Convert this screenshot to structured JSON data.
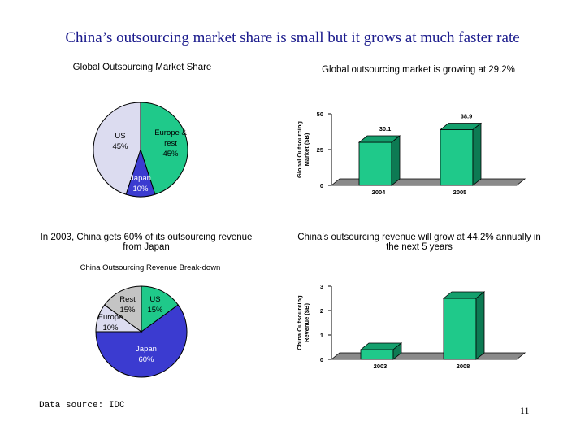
{
  "slide": {
    "title": "China’s outsourcing market share is small but it grows at much faster rate",
    "source": "Data source: IDC",
    "page_number": "11"
  },
  "colors": {
    "green": "#1fc98a",
    "blue": "#3b3bd0",
    "lavender": "#dcdcf0",
    "gray": "#c4c4c4",
    "title": "#1a1a8c"
  },
  "chart_data": [
    {
      "type": "pie",
      "title": "Global Outsourcing Market Share",
      "slices": [
        {
          "label": "Europe & rest",
          "value": 45,
          "display": "45%",
          "color": "#1fc98a"
        },
        {
          "label": "Japan",
          "value": 10,
          "display": "10%",
          "color": "#3b3bd0"
        },
        {
          "label": "US",
          "value": 45,
          "display": "45%",
          "color": "#dcdcf0"
        }
      ]
    },
    {
      "type": "bar",
      "title": "Global outsourcing market is growing at 29.2%",
      "ylabel_lines": [
        "Global Outsourcing",
        "Market ($B)"
      ],
      "categories": [
        "2004",
        "2005"
      ],
      "values": [
        30.1,
        38.9
      ],
      "value_labels": [
        "30.1",
        "38.9"
      ],
      "ylim": [
        0,
        50
      ],
      "yticks": [
        0,
        25,
        50
      ]
    },
    {
      "type": "pie",
      "title": "In 2003, China gets 60% of its outsourcing revenue from Japan",
      "subtitle": "China Outsourcing Revenue Break-down",
      "slices": [
        {
          "label": "US",
          "value": 15,
          "display": "15%",
          "color": "#1fc98a"
        },
        {
          "label": "Japan",
          "value": 60,
          "display": "60%",
          "color": "#3b3bd0"
        },
        {
          "label": "Europe",
          "value": 10,
          "display": "10%",
          "color": "#dcdcf0"
        },
        {
          "label": "Rest",
          "value": 15,
          "display": "15%",
          "color": "#c4c4c4"
        }
      ]
    },
    {
      "type": "bar",
      "title": "China’s outsourcing revenue will grow at 44.2% annually in the next 5 years",
      "ylabel_lines": [
        "China Outsourcing",
        "Revenue ($B)"
      ],
      "categories": [
        "2003",
        "2008"
      ],
      "values": [
        0.4,
        2.5
      ],
      "ylim": [
        0,
        3
      ],
      "yticks": [
        0,
        1,
        2,
        3
      ]
    }
  ]
}
